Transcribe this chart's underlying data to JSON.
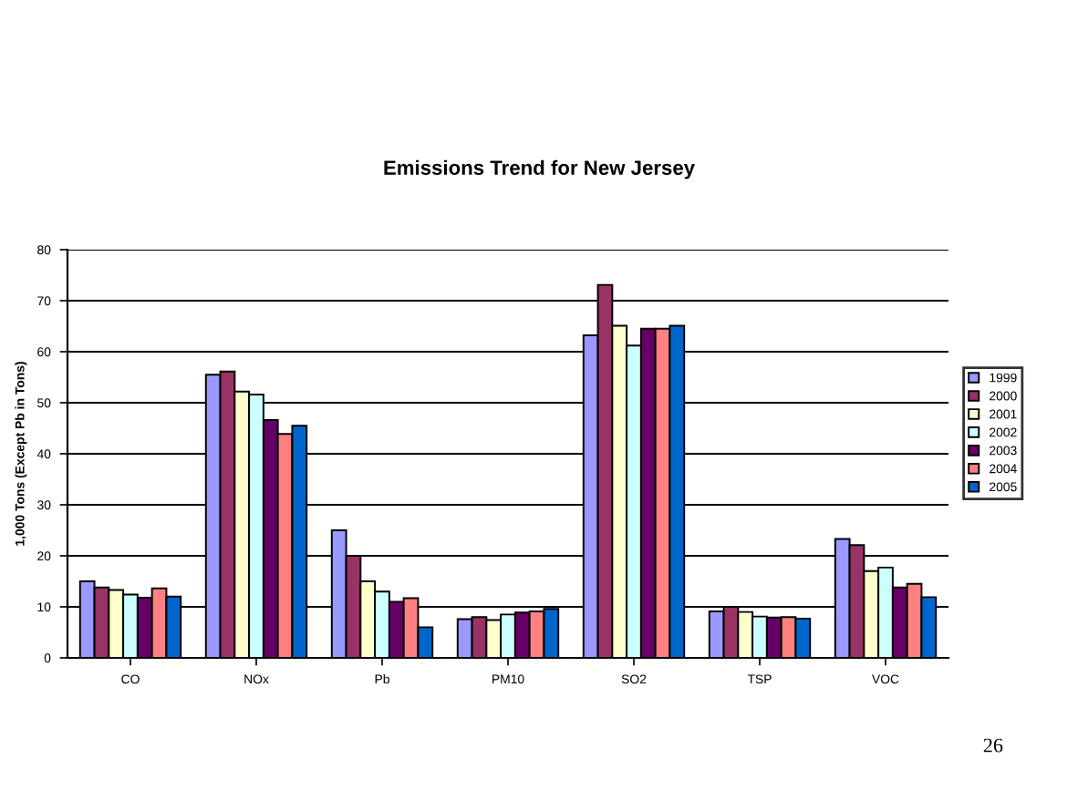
{
  "chart_data": {
    "type": "bar",
    "title": "Emissions Trend for New Jersey",
    "ylabel": "1,000 Tons (Except Pb in Tons)",
    "categories": [
      "CO",
      "NOx",
      "Pb",
      "PM10",
      "SO2",
      "TSP",
      "VOC"
    ],
    "series": [
      {
        "name": "1999",
        "color": "#9999ff",
        "values": [
          15,
          55.5,
          25,
          7.6,
          63.2,
          9.1,
          23.3
        ]
      },
      {
        "name": "2000",
        "color": "#993366",
        "values": [
          13.8,
          56.1,
          20,
          8,
          73.1,
          10,
          22.1
        ]
      },
      {
        "name": "2001",
        "color": "#ffffcc",
        "values": [
          13.3,
          52.2,
          15,
          7.4,
          65.1,
          9,
          17
        ]
      },
      {
        "name": "2002",
        "color": "#ccffff",
        "values": [
          12.4,
          51.6,
          13,
          8.5,
          61.2,
          8.1,
          17.7
        ]
      },
      {
        "name": "2003",
        "color": "#660066",
        "values": [
          11.8,
          46.6,
          11,
          8.9,
          64.5,
          7.9,
          13.8
        ]
      },
      {
        "name": "2004",
        "color": "#ff8080",
        "values": [
          13.6,
          43.9,
          11.7,
          9.1,
          64.5,
          8,
          14.5
        ]
      },
      {
        "name": "2005",
        "color": "#0066cc",
        "values": [
          12,
          45.5,
          6,
          9.6,
          65.1,
          7.7,
          11.9
        ]
      }
    ],
    "ylim": [
      0,
      80
    ],
    "yticks": [
      0,
      10,
      20,
      30,
      40,
      50,
      60,
      70,
      80
    ],
    "grid": "y",
    "legend": "right",
    "annotations": [
      "26"
    ]
  }
}
